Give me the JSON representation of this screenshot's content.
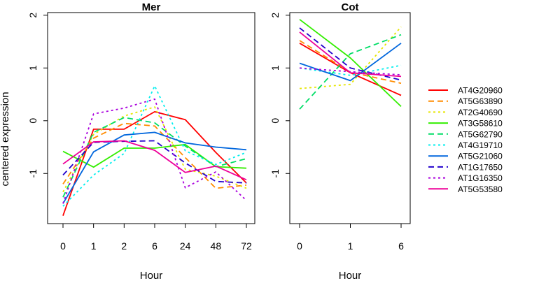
{
  "colors": {
    "AT4G20960": "#ff0000",
    "AT5G63890": "#ff8c00",
    "AT2G40690": "#e6e600",
    "AT3G58610": "#33ee00",
    "AT5G62790": "#00dd66",
    "AT4G19710": "#00eeee",
    "AT5G21060": "#0066dd",
    "AT1G17650": "#2200cc",
    "AT1G16350": "#aa00dd",
    "AT5G53580": "#ee0099"
  },
  "chart_data": {
    "type": "line",
    "ylabel": "centered expression",
    "xlabel": "Hour",
    "legend": {
      "placement": "right",
      "entries": [
        "AT4G20960",
        "AT5G63890",
        "AT2G40690",
        "AT3G58610",
        "AT5G62790",
        "AT4G19710",
        "AT5G21060",
        "AT1G17650",
        "AT1G16350",
        "AT5G53580"
      ]
    },
    "panels": [
      {
        "title": "Mer",
        "categories": [
          "0",
          "1",
          "2",
          "6",
          "24",
          "48",
          "72"
        ],
        "ylim": [
          -1.95,
          2.05
        ],
        "yticks": [
          -1,
          0,
          1,
          2
        ],
        "ytick_labels": [
          "-1",
          "0",
          "1",
          "2"
        ],
        "series": [
          {
            "name": "AT4G20960",
            "style": "solid",
            "values": [
              -1.8,
              -0.16,
              -0.16,
              0.17,
              0.02,
              -0.6,
              -1.18
            ]
          },
          {
            "name": "AT5G63890",
            "style": "dashed",
            "values": [
              -1.2,
              -0.33,
              -0.05,
              -0.1,
              -0.7,
              -1.28,
              -1.22
            ]
          },
          {
            "name": "AT2G40690",
            "style": "dotted",
            "values": [
              -1.35,
              -0.26,
              0.09,
              0.26,
              -0.92,
              -1.05,
              -1.28
            ]
          },
          {
            "name": "AT3G58610",
            "style": "solid",
            "values": [
              -0.58,
              -0.88,
              -0.52,
              -0.52,
              -0.45,
              -0.87,
              -0.9
            ]
          },
          {
            "name": "AT5G62790",
            "style": "dashed",
            "values": [
              -1.45,
              -0.22,
              0.06,
              -0.04,
              -0.48,
              -0.87,
              -0.72
            ]
          },
          {
            "name": "AT4G19710",
            "style": "dotted",
            "values": [
              -1.62,
              -1.03,
              -0.62,
              0.66,
              -0.57,
              -0.83,
              -0.6
            ]
          },
          {
            "name": "AT5G21060",
            "style": "solid",
            "values": [
              -1.57,
              -0.59,
              -0.27,
              -0.22,
              -0.42,
              -0.5,
              -0.55
            ]
          },
          {
            "name": "AT1G17650",
            "style": "dashed",
            "values": [
              -1.03,
              -0.41,
              -0.39,
              -0.38,
              -0.8,
              -1.15,
              -1.18
            ]
          },
          {
            "name": "AT1G16350",
            "style": "dotted",
            "values": [
              -1.57,
              0.13,
              0.24,
              0.41,
              -1.27,
              -0.97,
              -1.51
            ]
          },
          {
            "name": "AT5G53580",
            "style": "solid",
            "values": [
              -0.82,
              -0.4,
              -0.38,
              -0.56,
              -0.98,
              -0.86,
              -1.12
            ]
          }
        ]
      },
      {
        "title": "Cot",
        "categories": [
          "0",
          "1",
          "6"
        ],
        "ylim": [
          -1.95,
          2.05
        ],
        "yticks": [
          -1,
          0,
          1,
          2
        ],
        "ytick_labels": [
          "-1",
          "0",
          "1",
          "2"
        ],
        "series": [
          {
            "name": "AT4G20960",
            "style": "solid",
            "values": [
              1.47,
              0.91,
              0.48
            ]
          },
          {
            "name": "AT5G63890",
            "style": "dashed",
            "values": [
              1.52,
              0.92,
              0.71
            ]
          },
          {
            "name": "AT2G40690",
            "style": "dotted",
            "values": [
              0.61,
              0.69,
              1.78
            ]
          },
          {
            "name": "AT3G58610",
            "style": "solid",
            "values": [
              1.92,
              1.19,
              0.27
            ]
          },
          {
            "name": "AT5G62790",
            "style": "dashed",
            "values": [
              0.22,
              1.27,
              1.63
            ]
          },
          {
            "name": "AT4G19710",
            "style": "dotted",
            "values": [
              1.0,
              0.86,
              1.05
            ]
          },
          {
            "name": "AT5G21060",
            "style": "solid",
            "values": [
              1.09,
              0.76,
              1.47
            ]
          },
          {
            "name": "AT1G17650",
            "style": "dashed",
            "values": [
              1.76,
              1.0,
              0.77
            ]
          },
          {
            "name": "AT1G16350",
            "style": "dotted",
            "values": [
              1.0,
              0.93,
              0.87
            ]
          },
          {
            "name": "AT5G53580",
            "style": "solid",
            "values": [
              1.68,
              0.91,
              0.84
            ]
          }
        ]
      }
    ]
  }
}
